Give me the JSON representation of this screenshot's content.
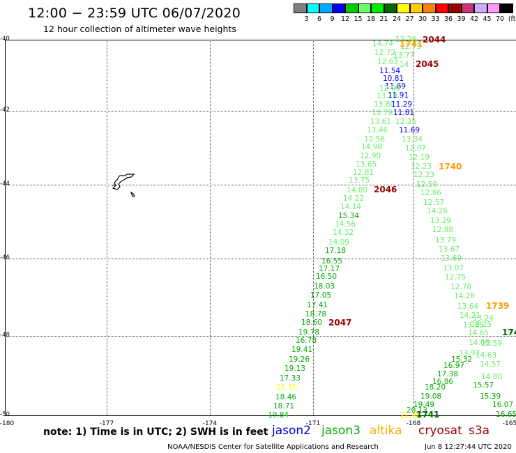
{
  "header": {
    "title": "12:00 − 23:59 UTC 06/07/2020",
    "subtitle": "12 hour collection of altimeter wave heights"
  },
  "colorbar": {
    "unit_label": "(ft)",
    "ticks": [
      "3",
      "6",
      "9",
      "12",
      "15",
      "18",
      "21",
      "24",
      "27",
      "30",
      "33",
      "36",
      "39",
      "42",
      "45",
      "70"
    ],
    "colors": [
      "#808080",
      "#00ffff",
      "#00aaff",
      "#0000ff",
      "#00cc00",
      "#66ff66",
      "#00ee00",
      "#006600",
      "#ffff00",
      "#ffcc00",
      "#ff8000",
      "#ff0000",
      "#990000",
      "#cc3377",
      "#ccaaff",
      "#ff99ff",
      "#000000"
    ]
  },
  "axes": {
    "lat_labels": [
      "-40",
      "-42",
      "-44",
      "-46",
      "-48",
      "-50"
    ],
    "lon_labels": [
      "-180",
      "-177",
      "-174",
      "-171",
      "-168",
      "-165"
    ]
  },
  "passes": [
    {
      "label": "2044",
      "color": "#990000"
    },
    {
      "label": "1741",
      "color": "#ffaa00"
    },
    {
      "label": "2045",
      "color": "#990000"
    },
    {
      "label": "1740",
      "color": "#ff9900"
    },
    {
      "label": "2046",
      "color": "#990000"
    },
    {
      "label": "1739",
      "color": "#ff9900"
    },
    {
      "label": "2047",
      "color": "#990000"
    },
    {
      "label": "1741",
      "color": "#006600"
    },
    {
      "label": "174",
      "color": "#006600"
    }
  ],
  "observations": [
    {
      "v": "12.28",
      "c": "#66ee66"
    },
    {
      "v": "14.74",
      "c": "#66ee66"
    },
    {
      "v": "12.73",
      "c": "#66ee66"
    },
    {
      "v": "12.72",
      "c": "#66ee66"
    },
    {
      "v": "13.77",
      "c": "#66ee66"
    },
    {
      "v": "12.63",
      "c": "#66ee66"
    },
    {
      "v": "14",
      "c": "#66ee66"
    },
    {
      "v": "11.54",
      "c": "#0000ff"
    },
    {
      "v": "10.81",
      "c": "#0000ff"
    },
    {
      "v": "11.69",
      "c": "#0000ff"
    },
    {
      "v": "12.00",
      "c": "#66ee66"
    },
    {
      "v": "13.10",
      "c": "#66ee66"
    },
    {
      "v": "11.91",
      "c": "#0000ff"
    },
    {
      "v": "13.80",
      "c": "#66ee66"
    },
    {
      "v": "11.29",
      "c": "#0000ff"
    },
    {
      "v": "13.79",
      "c": "#66ee66"
    },
    {
      "v": "11.81",
      "c": "#0000ff"
    },
    {
      "v": "13.61",
      "c": "#66ee66"
    },
    {
      "v": "12.25",
      "c": "#66ee66"
    },
    {
      "v": "13.46",
      "c": "#66ee66"
    },
    {
      "v": "11.69",
      "c": "#0000ff"
    },
    {
      "v": "12.56",
      "c": "#66ee66"
    },
    {
      "v": "13.34",
      "c": "#66ee66"
    },
    {
      "v": "14.98",
      "c": "#66ee66"
    },
    {
      "v": "12.97",
      "c": "#66ee66"
    },
    {
      "v": "12.90",
      "c": "#66ee66"
    },
    {
      "v": "12.19",
      "c": "#66ee66"
    },
    {
      "v": "13.65",
      "c": "#66ee66"
    },
    {
      "v": "12.23",
      "c": "#66ee66"
    },
    {
      "v": "12.81",
      "c": "#66ee66"
    },
    {
      "v": "12.23",
      "c": "#66ee66"
    },
    {
      "v": "13.75",
      "c": "#66ee66"
    },
    {
      "v": "12.59",
      "c": "#66ee66"
    },
    {
      "v": "14.80",
      "c": "#66ee66"
    },
    {
      "v": "12.86",
      "c": "#66ee66"
    },
    {
      "v": "14.22",
      "c": "#66ee66"
    },
    {
      "v": "12.57",
      "c": "#66ee66"
    },
    {
      "v": "14.14",
      "c": "#66ee66"
    },
    {
      "v": "14.26",
      "c": "#66ee66"
    },
    {
      "v": "15.34",
      "c": "#00aa00"
    },
    {
      "v": "13.29",
      "c": "#66ee66"
    },
    {
      "v": "14.56",
      "c": "#66ee66"
    },
    {
      "v": "12.88",
      "c": "#66ee66"
    },
    {
      "v": "14.32",
      "c": "#66ee66"
    },
    {
      "v": "13.79",
      "c": "#66ee66"
    },
    {
      "v": "14.09",
      "c": "#66ee66"
    },
    {
      "v": "13.67",
      "c": "#66ee66"
    },
    {
      "v": "17.18",
      "c": "#00aa00"
    },
    {
      "v": "13.69",
      "c": "#66ee66"
    },
    {
      "v": "16.55",
      "c": "#00aa00"
    },
    {
      "v": "13.07",
      "c": "#66ee66"
    },
    {
      "v": "17.17",
      "c": "#00aa00"
    },
    {
      "v": "12.75",
      "c": "#66ee66"
    },
    {
      "v": "16.50",
      "c": "#00aa00"
    },
    {
      "v": "12.78",
      "c": "#66ee66"
    },
    {
      "v": "18.03",
      "c": "#00aa00"
    },
    {
      "v": "14.28",
      "c": "#66ee66"
    },
    {
      "v": "17.05",
      "c": "#00aa00"
    },
    {
      "v": "13.64",
      "c": "#66ee66"
    },
    {
      "v": "17.41",
      "c": "#00aa00"
    },
    {
      "v": "14.21",
      "c": "#66ee66"
    },
    {
      "v": "13.24",
      "c": "#66ee66"
    },
    {
      "v": "18.78",
      "c": "#00aa00"
    },
    {
      "v": "18.60",
      "c": "#00aa00"
    },
    {
      "v": "13.85",
      "c": "#66ee66"
    },
    {
      "v": "13.25",
      "c": "#66ee66"
    },
    {
      "v": "19.78",
      "c": "#00aa00"
    },
    {
      "v": "14.65",
      "c": "#66ee66"
    },
    {
      "v": "16.78",
      "c": "#00aa00"
    },
    {
      "v": "14.06",
      "c": "#66ee66"
    },
    {
      "v": "13.59",
      "c": "#66ee66"
    },
    {
      "v": "19.41",
      "c": "#00aa00"
    },
    {
      "v": "13.97",
      "c": "#66ee66"
    },
    {
      "v": "14.63",
      "c": "#66ee66"
    },
    {
      "v": "19.26",
      "c": "#00aa00"
    },
    {
      "v": "15.32",
      "c": "#00aa00"
    },
    {
      "v": "16.97",
      "c": "#00aa00"
    },
    {
      "v": "14.57",
      "c": "#66ee66"
    },
    {
      "v": "19.13",
      "c": "#00aa00"
    },
    {
      "v": "17.38",
      "c": "#00aa00"
    },
    {
      "v": "16.86",
      "c": "#00aa00"
    },
    {
      "v": "14.80",
      "c": "#66ee66"
    },
    {
      "v": "17.33",
      "c": "#00aa00"
    },
    {
      "v": "18.20",
      "c": "#00aa00"
    },
    {
      "v": "21.10",
      "c": "#ffff00"
    },
    {
      "v": "15.57",
      "c": "#00aa00"
    },
    {
      "v": "19.08",
      "c": "#00aa00"
    },
    {
      "v": "18.46",
      "c": "#00aa00"
    },
    {
      "v": "19.49",
      "c": "#00aa00"
    },
    {
      "v": "15.39",
      "c": "#00aa00"
    },
    {
      "v": "18.71",
      "c": "#00aa00"
    },
    {
      "v": "20.13",
      "c": "#00aa00"
    },
    {
      "v": "16.07",
      "c": "#00aa00"
    },
    {
      "v": "19.84",
      "c": "#00aa00"
    },
    {
      "v": "21.98",
      "c": "#ffff00"
    },
    {
      "v": "16.65",
      "c": "#00aa00"
    }
  ],
  "note": {
    "text": "note:  1) Time is in UTC; 2) SWH is in feet",
    "satellites": [
      {
        "name": "jason2",
        "color": "#0000dd"
      },
      {
        "name": "jason3",
        "color": "#00aa00"
      },
      {
        "name": "altika",
        "color": "#ffaa00"
      },
      {
        "name": "cryosat",
        "color": "#990000"
      },
      {
        "name": "s3a",
        "color": "#990000"
      }
    ]
  },
  "footer": {
    "credit": "NOAA/NESDIS Center for Satellite Applications and Research",
    "timestamp": "Jun  8 12:27:44 UTC 2020"
  }
}
